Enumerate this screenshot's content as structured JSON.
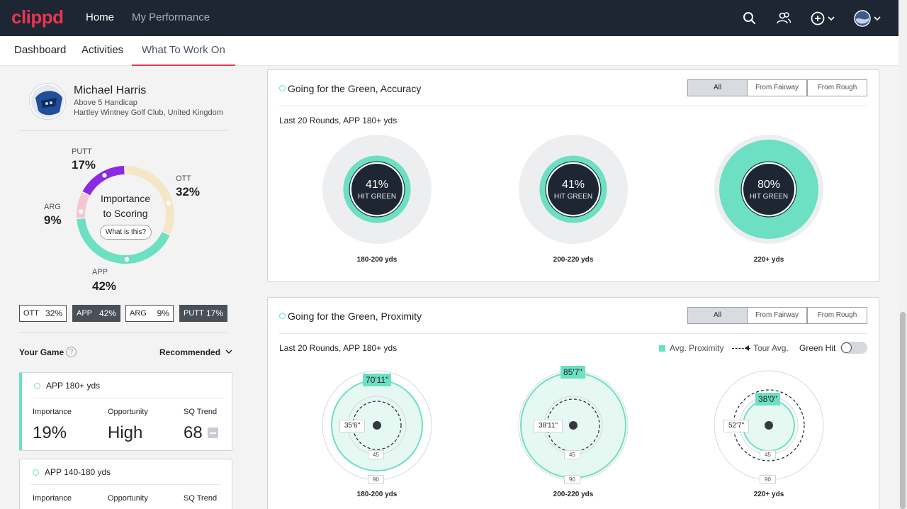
{
  "nav": {
    "logo": "clippd",
    "home": "Home",
    "performance": "My Performance",
    "icons": [
      "search-icon",
      "users-icon",
      "add-circle-icon",
      "chevron-down-icon",
      "profile-avatar"
    ]
  },
  "tabs": [
    {
      "label": "Dashboard",
      "active": false
    },
    {
      "label": "Activities",
      "active": false
    },
    {
      "label": "What To Work On",
      "active": true
    }
  ],
  "player": {
    "name": "Michael Harris",
    "handicap": "Above 5 Handicap",
    "club": "Hartley Wintney Golf Club, United Kingdom"
  },
  "importance": {
    "title_line1": "Importance",
    "title_line2": "to Scoring",
    "button": "What is this?",
    "segments": [
      {
        "label": "PUTT",
        "value": "17%",
        "fraction": 0.17,
        "color": "#8a2be2"
      },
      {
        "label": "OTT",
        "value": "32%",
        "fraction": 0.32,
        "color": "#f5e6c8"
      },
      {
        "label": "APP",
        "value": "42%",
        "fraction": 0.42,
        "color": "#6ddfc2"
      },
      {
        "label": "ARG",
        "value": "9%",
        "fraction": 0.09,
        "color": "#f5c6cf"
      }
    ],
    "chips": [
      {
        "label": "OTT",
        "value": "32%",
        "dark": false
      },
      {
        "label": "APP",
        "value": "42%",
        "dark": true
      },
      {
        "label": "ARG",
        "value": "9%",
        "dark": false
      },
      {
        "label": "PUTT",
        "value": "17%",
        "dark": true
      }
    ]
  },
  "your_game": {
    "title": "Your Game",
    "help": "?",
    "sort": "Recommended",
    "cards": [
      {
        "title": "APP 180+ yds",
        "importance_label": "Importance",
        "importance": "19%",
        "opportunity_label": "Opportunity",
        "opportunity": "High",
        "trend_label": "SQ Trend",
        "trend": "68"
      },
      {
        "title": "APP 140-180 yds",
        "importance_label": "Importance",
        "opportunity_label": "Opportunity",
        "trend_label": "SQ Trend"
      }
    ]
  },
  "accuracy": {
    "title": "Going for the Green, Accuracy",
    "filters": [
      "All",
      "From Fairway",
      "From Rough"
    ],
    "active_filter": "All",
    "subtitle": "Last 20 Rounds, APP 180+ yds",
    "items": [
      {
        "pct": "41%",
        "label": "HIT GREEN",
        "range": "180-200 yds",
        "fraction": 0.41
      },
      {
        "pct": "41%",
        "label": "HIT GREEN",
        "range": "200-220 yds",
        "fraction": 0.41
      },
      {
        "pct": "80%",
        "label": "HIT GREEN",
        "range": "220+ yds",
        "fraction": 0.8
      }
    ]
  },
  "proximity": {
    "title": "Going for the Green, Proximity",
    "filters": [
      "All",
      "From Fairway",
      "From Rough"
    ],
    "active_filter": "All",
    "subtitle": "Last 20 Rounds, APP 180+ yds",
    "legend": {
      "avg": "Avg. Proximity",
      "tour": "Tour Avg.",
      "green_hit": "Green Hit"
    },
    "ring_45": "45",
    "ring_90": "90",
    "items": [
      {
        "avg": "70'11\"",
        "tour": "35'6\"",
        "range": "180-200 yds"
      },
      {
        "avg": "85'7\"",
        "tour": "38'11\"",
        "range": "200-220 yds"
      },
      {
        "avg": "38'0\"",
        "tour": "52'7\"",
        "range": "220+ yds"
      }
    ]
  },
  "colors": {
    "accent": "#e8364f",
    "teal": "#6ddfc2",
    "navy": "#1d2632"
  }
}
